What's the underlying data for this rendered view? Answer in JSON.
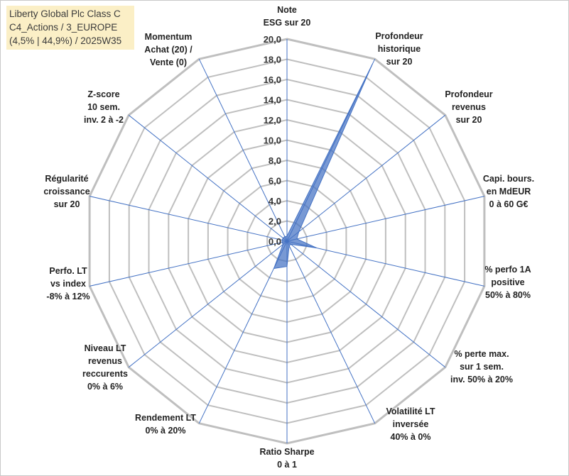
{
  "chart_data": {
    "type": "radar",
    "title_lines": [
      "Liberty Global Plc Class C",
      "C4_Actions / 3_EUROPE",
      "(4,5% | 44,9%) / 2025W35"
    ],
    "rmin": 0,
    "rmax": 20,
    "tick_step": 2,
    "tick_labels": [
      "0,0",
      "2,0",
      "4,0",
      "6,0",
      "8,0",
      "10,0",
      "12,0",
      "14,0",
      "16,0",
      "18,0",
      "20,0"
    ],
    "axes": [
      {
        "label": [
          "Note",
          "ESG sur 20"
        ],
        "value": 0.5
      },
      {
        "label": [
          "Profondeur",
          "historique",
          "sur 20"
        ],
        "value": 19.5
      },
      {
        "label": [
          "Profondeur",
          "revenus",
          "sur 20"
        ],
        "value": 1.5
      },
      {
        "label": [
          "Capi. bours.",
          "en MdEUR",
          "0 à 60 G€"
        ],
        "value": 1.0
      },
      {
        "label": [
          "% perfo 1A",
          "positive",
          "50% à 80%"
        ],
        "value": 3.0
      },
      {
        "label": [
          "% perte max.",
          "sur 1 sem.",
          "inv. 50% à 20%"
        ],
        "value": 0.5
      },
      {
        "label": [
          "Volatilité LT",
          "inversée",
          "40% à 0%"
        ],
        "value": 0.5
      },
      {
        "label": [
          "Ratio Sharpe",
          "0 à 1"
        ],
        "value": 2.5
      },
      {
        "label": [
          "Rendement LT",
          "0% à 20%"
        ],
        "value": 3.0
      },
      {
        "label": [
          "Niveau LT",
          "revenus",
          "reccurents",
          "0% à 6%"
        ],
        "value": 0.5
      },
      {
        "label": [
          "Perfo. LT",
          "vs index",
          "-8% à 12%"
        ],
        "value": 0.5
      },
      {
        "label": [
          "Régularité",
          "croissance",
          "sur 20"
        ],
        "value": 0.5
      },
      {
        "label": [
          "Z-score",
          "10 sem.",
          "inv. 2 à -2"
        ],
        "value": 0.5
      },
      {
        "label": [
          "Momentum",
          "Achat (20) /",
          "Vente (0)"
        ],
        "value": 0.5
      }
    ],
    "colors": {
      "grid": "#bfbfbf",
      "spoke": "#4472c4",
      "fill": "#4472c4",
      "title_bg": "#fbefc6"
    },
    "grid": true,
    "legend": "none"
  }
}
